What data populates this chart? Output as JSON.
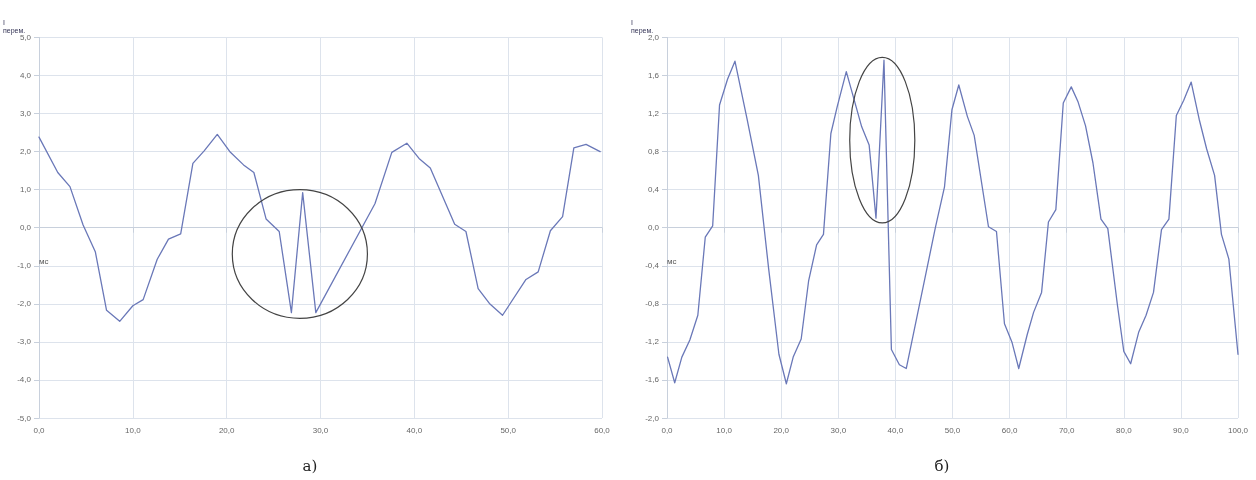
{
  "chart_data": [
    {
      "type": "line",
      "title": "а)",
      "xlabel": "мс",
      "ylabel": "I\nперем.",
      "grid": true,
      "marker": "none",
      "line_style": "solid",
      "xlim": [
        0,
        60
      ],
      "xticks": [
        {
          "value": 0,
          "label": "0,0"
        },
        {
          "value": 10,
          "label": "10,0"
        },
        {
          "value": 20,
          "label": "20,0"
        },
        {
          "value": 30,
          "label": "30,0"
        },
        {
          "value": 40,
          "label": "40,0"
        },
        {
          "value": 50,
          "label": "50,0"
        },
        {
          "value": 60,
          "label": "60,0"
        }
      ],
      "ylim": [
        -5,
        5
      ],
      "yticks": [
        {
          "value": -5,
          "label": "-5,0"
        },
        {
          "value": -4,
          "label": "-4,0"
        },
        {
          "value": -3,
          "label": "-3,0"
        },
        {
          "value": -2,
          "label": "-2,0"
        },
        {
          "value": -1,
          "label": "-1,0"
        },
        {
          "value": 0,
          "label": "0,0"
        },
        {
          "value": 1,
          "label": "1,0"
        },
        {
          "value": 2,
          "label": "2,0"
        },
        {
          "value": 3,
          "label": "3,0"
        },
        {
          "value": 4,
          "label": "4,0"
        },
        {
          "value": 5,
          "label": "5,0"
        }
      ],
      "series": [
        {
          "color": "#6a78b8",
          "x": [
            0,
            2.0,
            3.3,
            4.7,
            6.0,
            7.2,
            8.6,
            10.0,
            11.1,
            12.6,
            13.8,
            15.1,
            16.4,
            17.6,
            19.0,
            20.4,
            21.8,
            22.9,
            24.2,
            25.6,
            26.9,
            28.1,
            29.5,
            35.8,
            37.6,
            39.2,
            40.5,
            41.7,
            44.3,
            45.5,
            46.8,
            48.0,
            49.4,
            51.9,
            53.2,
            54.5,
            55.8,
            57.0,
            58.3,
            59.8
          ],
          "values": [
            2.38,
            1.45,
            1.08,
            0.07,
            -0.63,
            -2.17,
            -2.46,
            -2.05,
            -1.89,
            -0.83,
            -0.3,
            -0.16,
            1.69,
            2.02,
            2.45,
            1.98,
            1.65,
            1.45,
            0.23,
            -0.1,
            -2.23,
            0.92,
            -2.23,
            0.63,
            1.98,
            2.22,
            1.82,
            1.57,
            0.09,
            -0.1,
            -1.6,
            -1.99,
            -2.3,
            -1.36,
            -1.16,
            -0.08,
            0.29,
            2.1,
            2.19,
            2.0
          ]
        }
      ]
    },
    {
      "type": "line",
      "title": "б)",
      "xlabel": "мс",
      "ylabel": "I\nперем.",
      "grid": true,
      "marker": "none",
      "line_style": "solid",
      "xlim": [
        0,
        100
      ],
      "xticks": [
        {
          "value": 0,
          "label": "0,0"
        },
        {
          "value": 10,
          "label": "10,0"
        },
        {
          "value": 20,
          "label": "20,0"
        },
        {
          "value": 30,
          "label": "30,0"
        },
        {
          "value": 40,
          "label": "40,0"
        },
        {
          "value": 50,
          "label": "50,0"
        },
        {
          "value": 60,
          "label": "60,0"
        },
        {
          "value": 70,
          "label": "70,0"
        },
        {
          "value": 80,
          "label": "80,0"
        },
        {
          "value": 90,
          "label": "90,0"
        },
        {
          "value": 100,
          "label": "100,0"
        }
      ],
      "ylim": [
        -2,
        2
      ],
      "yticks": [
        {
          "value": -2,
          "label": "-2,0"
        },
        {
          "value": -1.6,
          "label": "-1,6"
        },
        {
          "value": -1.2,
          "label": "-1,2"
        },
        {
          "value": -0.8,
          "label": "-0,8"
        },
        {
          "value": -0.4,
          "label": "-0,4"
        },
        {
          "value": 0,
          "label": "0,0"
        },
        {
          "value": 0.4,
          "label": "0,4"
        },
        {
          "value": 0.8,
          "label": "0,8"
        },
        {
          "value": 1.2,
          "label": "1,2"
        },
        {
          "value": 1.6,
          "label": "1,6"
        },
        {
          "value": 2,
          "label": "2,0"
        }
      ],
      "series": [
        {
          "color": "#6a78b8",
          "x": [
            0.1,
            1.35,
            2.6,
            4.0,
            5.4,
            6.7,
            8.0,
            9.2,
            10.6,
            11.9,
            14.0,
            16.0,
            17.8,
            19.6,
            20.9,
            22.1,
            23.5,
            24.8,
            26.2,
            27.4,
            28.7,
            29.8,
            31.4,
            34.1,
            35.4,
            36.6,
            38.0,
            39.3,
            40.7,
            41.9,
            47.0,
            48.6,
            49.9,
            51.1,
            52.6,
            53.8,
            56.3,
            57.7,
            59.1,
            60.4,
            61.6,
            63.1,
            64.2,
            65.6,
            66.8,
            68.1,
            69.4,
            70.8,
            72.0,
            73.3,
            74.6,
            76.0,
            77.2,
            78.9,
            80.0,
            81.2,
            82.6,
            83.9,
            85.2,
            86.6,
            87.9,
            89.2,
            90.5,
            91.8,
            93.2,
            94.5,
            95.9,
            97.1,
            98.4,
            100
          ],
          "values": [
            -1.36,
            -1.63,
            -1.36,
            -1.18,
            -0.92,
            -0.1,
            0.02,
            1.29,
            1.56,
            1.75,
            1.15,
            0.55,
            -0.43,
            -1.33,
            -1.64,
            -1.36,
            -1.17,
            -0.56,
            -0.18,
            -0.07,
            0.99,
            1.27,
            1.64,
            1.06,
            0.87,
            0.1,
            1.76,
            -1.28,
            -1.44,
            -1.48,
            0.0,
            0.43,
            1.24,
            1.5,
            1.17,
            0.97,
            0.01,
            -0.04,
            -1.01,
            -1.2,
            -1.48,
            -1.12,
            -0.89,
            -0.68,
            0.06,
            0.19,
            1.31,
            1.48,
            1.32,
            1.07,
            0.68,
            0.09,
            -0.01,
            -0.82,
            -1.3,
            -1.43,
            -1.1,
            -0.92,
            -0.68,
            -0.02,
            0.09,
            1.18,
            1.34,
            1.53,
            1.14,
            0.83,
            0.55,
            -0.07,
            -0.33,
            -1.33
          ]
        }
      ]
    }
  ]
}
